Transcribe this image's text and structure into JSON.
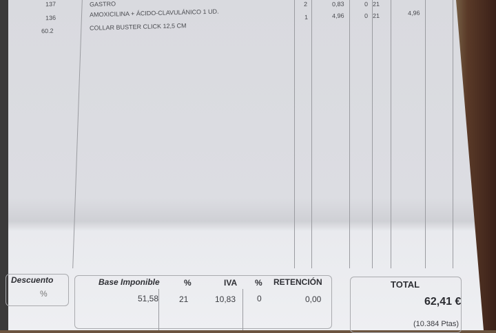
{
  "items": [
    {
      "code": "137",
      "description": "GASTRO",
      "qty": "2",
      "price": "0,83",
      "discount": "0",
      "vat": "21",
      "amount": ""
    },
    {
      "code": "136",
      "description": "AMOXICILINA + ÁCIDO-CLAVULÁNICO  1 UD.",
      "qty": "1",
      "price": "4,96",
      "discount": "0",
      "vat": "21",
      "amount": "4,96"
    },
    {
      "code": "60.2",
      "description": "COLLAR BUSTER CLICK  12,5 CM",
      "qty": "",
      "price": "",
      "discount": "",
      "vat": "",
      "amount": ""
    }
  ],
  "summary": {
    "descuento_label": "Descuento",
    "descuento_unit": "%",
    "base_label": "Base Imponible",
    "pct1_label": "%",
    "iva_label": "IVA",
    "pct2_label": "%",
    "retencion_label": "RETENCIÓN",
    "base_value": "51,58",
    "iva_pct": "21",
    "iva_value": "10,83",
    "ret_pct": "0",
    "ret_value": "0,00",
    "total_label": "TOTAL",
    "total_value": "62,41 €",
    "total_ptas": "(10.384 Ptas)"
  }
}
